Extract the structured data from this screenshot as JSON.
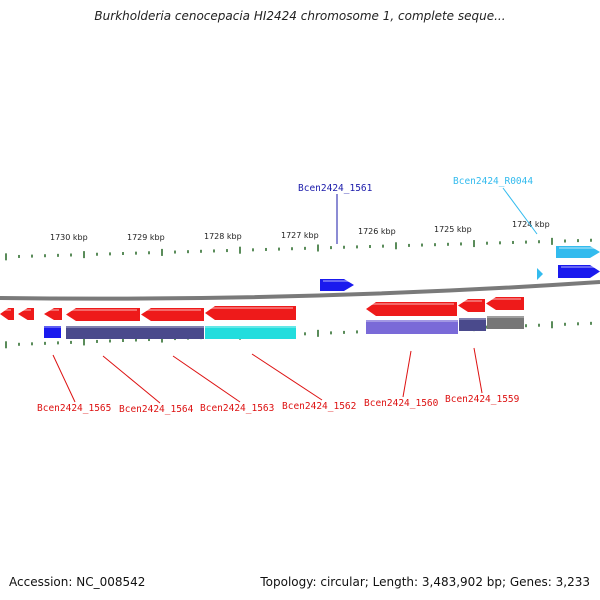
{
  "title": "Burkholderia cenocepacia HI2424 chromosome 1, complete seque...",
  "footer": {
    "accession": "Accession: NC_008542",
    "stats": "Topology: circular; Length: 3,483,902 bp; Genes: 3,233"
  },
  "scale_labels": [
    "1730 kbp",
    "1729 kbp",
    "1728 kbp",
    "1727 kbp",
    "1726 kbp",
    "1725 kbp",
    "1724 kbp"
  ],
  "colors": {
    "forward_gene": "#1a1aee",
    "reverse_gene": "#ee1a1a",
    "rna_gene": "#33bbee",
    "cds_purple": "#4a4a8c",
    "cds_cyan": "#22dddd",
    "cds_violet": "#7a6ad8",
    "cds_gray": "#777777",
    "tick": "#226622",
    "backbone": "#7a7a7a"
  },
  "gene_labels": [
    {
      "name": "Bcen2424_1561",
      "strand": "forward"
    },
    {
      "name": "Bcen2424_R0044",
      "strand": "rna"
    },
    {
      "name": "Bcen2424_1565",
      "strand": "reverse"
    },
    {
      "name": "Bcen2424_1564",
      "strand": "reverse"
    },
    {
      "name": "Bcen2424_1563",
      "strand": "reverse"
    },
    {
      "name": "Bcen2424_1562",
      "strand": "reverse"
    },
    {
      "name": "Bcen2424_1560",
      "strand": "reverse"
    },
    {
      "name": "Bcen2424_1559",
      "strand": "reverse"
    }
  ]
}
